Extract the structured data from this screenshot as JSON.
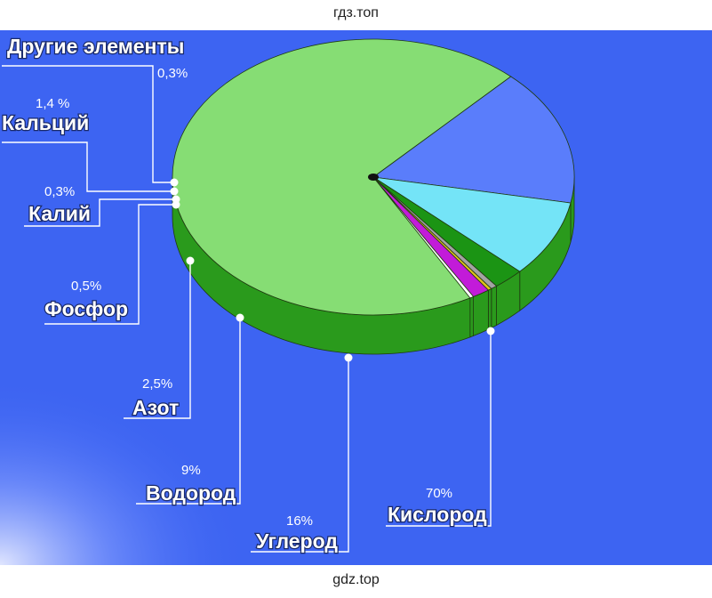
{
  "watermark_top": "гдз.топ",
  "watermark_bottom": "gdz.top",
  "colors": {
    "background": "#3d64f2",
    "side": "#2a9a1c",
    "slice_edge": "#1f3a10"
  },
  "chart_data": {
    "type": "pie",
    "style": "3d",
    "title": "",
    "slices": [
      {
        "label": "Кислород",
        "value_label": "70%",
        "value": 70,
        "color": "#86dd74"
      },
      {
        "label": "Углерод",
        "value_label": "16%",
        "value": 16,
        "color": "#5a7dfb"
      },
      {
        "label": "Водород",
        "value_label": "9%",
        "value": 9,
        "color": "#74e4f7"
      },
      {
        "label": "Азот",
        "value_label": "2,5%",
        "value": 2.5,
        "color": "#1b9414"
      },
      {
        "label": "Фосфор",
        "value_label": "0,5%",
        "value": 0.5,
        "color": "#a3a3a3"
      },
      {
        "label": "Калий",
        "value_label": "0,3%",
        "value": 0.3,
        "color": "#e0c21a"
      },
      {
        "label": "Кальций",
        "value_label": "1,4 %",
        "value": 1.4,
        "color": "#c21bd9"
      },
      {
        "label": "Другие элементы",
        "value_label": "0,3%",
        "value": 0.3,
        "color": "#ffffff"
      }
    ]
  }
}
